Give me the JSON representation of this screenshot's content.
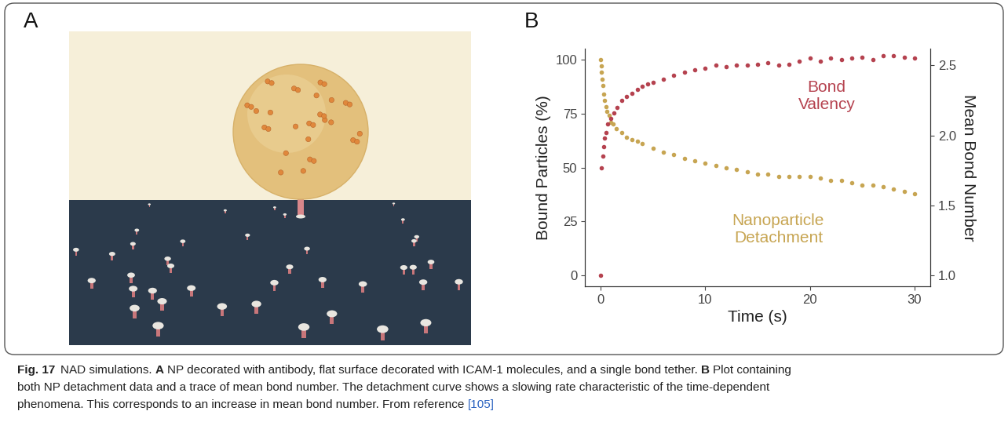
{
  "panels": [
    "A",
    "B"
  ],
  "chart_data": {
    "type": "scatter",
    "xlabel": "Time (s)",
    "ylabel": "Bound Particles (%)",
    "y2label": "Mean Bond Number",
    "xlim": [
      -1.5,
      31.5
    ],
    "xticks": [
      0,
      10,
      20,
      30
    ],
    "ylim": [
      -5,
      105
    ],
    "yticks": [
      0,
      25,
      50,
      75,
      100
    ],
    "y2lim": [
      0.92,
      2.62
    ],
    "y2ticks": [
      1.0,
      1.5,
      2.0,
      2.5
    ],
    "grid": false,
    "series": [
      {
        "name": "Bond Valency",
        "color": "#b5424f",
        "marker": "circle",
        "axis": "y2",
        "x": [
          0,
          0.1,
          0.2,
          0.3,
          0.4,
          0.5,
          0.7,
          1,
          1.3,
          1.6,
          2,
          2.5,
          3,
          3.5,
          4,
          4.5,
          5,
          6,
          7,
          8,
          9,
          10,
          11,
          12,
          13,
          14,
          15,
          16,
          17,
          18,
          19,
          20,
          21,
          22,
          23,
          24,
          25,
          26,
          27,
          28,
          29,
          30
        ],
        "values": [
          1.0,
          1.77,
          1.85,
          1.92,
          1.98,
          2.02,
          2.08,
          2.12,
          2.16,
          2.2,
          2.25,
          2.28,
          2.3,
          2.33,
          2.35,
          2.37,
          2.38,
          2.4,
          2.43,
          2.45,
          2.47,
          2.48,
          2.5,
          2.49,
          2.5,
          2.5,
          2.51,
          2.52,
          2.5,
          2.51,
          2.53,
          2.55,
          2.53,
          2.55,
          2.54,
          2.55,
          2.56,
          2.54,
          2.57,
          2.57,
          2.56,
          2.55
        ]
      },
      {
        "name": "Nanoparticle Detachment",
        "color": "#c7a552",
        "marker": "circle",
        "x": [
          0,
          0.05,
          0.1,
          0.15,
          0.2,
          0.3,
          0.4,
          0.5,
          0.6,
          0.8,
          1.0,
          1.2,
          1.5,
          2,
          2.5,
          3,
          3.5,
          4,
          5,
          6,
          7,
          8,
          9,
          10,
          11,
          12,
          13,
          14,
          15,
          16,
          17,
          18,
          19,
          20,
          21,
          22,
          23,
          24,
          25,
          26,
          27,
          28,
          29,
          30
        ],
        "values": [
          100,
          97,
          94,
          91,
          88,
          84,
          81,
          78,
          76,
          74,
          71,
          70,
          68,
          66,
          64,
          63,
          62,
          61,
          59,
          57,
          56,
          54,
          53,
          52,
          51,
          50,
          49,
          48,
          47,
          47,
          46,
          46,
          46,
          46,
          45,
          44,
          44,
          43,
          42,
          42,
          41,
          40,
          39,
          38
        ]
      }
    ]
  },
  "caption": [
    [
      {
        "text": "Fig. 17",
        "bold": true
      },
      {
        "text": "NAD simulations.",
        "bold": false
      },
      {
        "text": "A",
        "bold": true
      },
      {
        "text": "NP decorated with antibody, flat surface decorated with ICAM-1 molecules, and a single bond tether.",
        "bold": false
      },
      {
        "text": "B",
        "bold": true
      },
      {
        "text": "Plot containing",
        "bold": false
      }
    ],
    [
      {
        "text": "both NP detachment data and a trace of mean bond number. The detachment curve shows a slowing rate characteristic of the time-dependent",
        "bold": false
      }
    ],
    [
      {
        "text": "phenomena. This corresponds to an increase in mean bond number. From reference",
        "bold": false
      },
      {
        "text": "[105]",
        "bold": false,
        "color": "#2a62c0"
      }
    ]
  ]
}
